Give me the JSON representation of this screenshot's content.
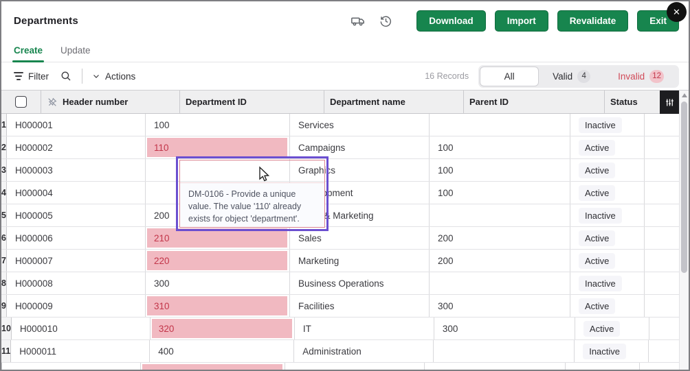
{
  "window": {
    "title": "Departments",
    "close_label": "✕"
  },
  "header": {
    "icons": {
      "truck": "truck-icon",
      "history": "history-icon"
    },
    "buttons": {
      "download": "Download",
      "import": "Import",
      "revalidate": "Revalidate",
      "exit": "Exit"
    }
  },
  "tabs": {
    "create": "Create",
    "update": "Update",
    "active": "Create"
  },
  "toolbar": {
    "filter_label": "Filter",
    "actions_label": "Actions",
    "records_text": "16 Records",
    "segments": {
      "all": "All",
      "valid": "Valid",
      "valid_count": "4",
      "invalid": "Invalid",
      "invalid_count": "12"
    }
  },
  "table": {
    "columns": {
      "header_number": "Header number",
      "department_id": "Department ID",
      "department_name": "Department name",
      "parent_id": "Parent ID",
      "status": "Status"
    },
    "rows": [
      {
        "num": "1",
        "header_number": "H000001",
        "department_id": "100",
        "invalid": false,
        "covered": false,
        "department_name": "Services",
        "parent_id": "",
        "status": "Inactive"
      },
      {
        "num": "2",
        "header_number": "H000002",
        "department_id": "110",
        "invalid": true,
        "covered": false,
        "department_name": "Campaigns",
        "parent_id": "100",
        "status": "Active"
      },
      {
        "num": "3",
        "header_number": "H000003",
        "department_id": "",
        "invalid": false,
        "covered": true,
        "department_name": "Graphics",
        "parent_id": "100",
        "status": "Active"
      },
      {
        "num": "4",
        "header_number": "H000004",
        "department_id": "",
        "invalid": false,
        "covered": true,
        "department_name": "Development",
        "parent_id": "100",
        "status": "Active"
      },
      {
        "num": "5",
        "header_number": "H000005",
        "department_id": "200",
        "invalid": false,
        "covered": false,
        "department_name": "Sales & Marketing",
        "parent_id": "",
        "status": "Inactive"
      },
      {
        "num": "6",
        "header_number": "H000006",
        "department_id": "210",
        "invalid": true,
        "covered": false,
        "department_name": "Sales",
        "parent_id": "200",
        "status": "Active"
      },
      {
        "num": "7",
        "header_number": "H000007",
        "department_id": "220",
        "invalid": true,
        "covered": false,
        "department_name": "Marketing",
        "parent_id": "200",
        "status": "Active"
      },
      {
        "num": "8",
        "header_number": "H000008",
        "department_id": "300",
        "invalid": false,
        "covered": false,
        "department_name": "Business Operations",
        "parent_id": "",
        "status": "Inactive"
      },
      {
        "num": "9",
        "header_number": "H000009",
        "department_id": "310",
        "invalid": true,
        "covered": false,
        "department_name": "Facilities",
        "parent_id": "300",
        "status": "Active"
      },
      {
        "num": "10",
        "header_number": "H000010",
        "department_id": "320",
        "invalid": true,
        "covered": false,
        "department_name": "IT",
        "parent_id": "300",
        "status": "Active"
      },
      {
        "num": "11",
        "header_number": "H000011",
        "department_id": "400",
        "invalid": false,
        "covered": false,
        "department_name": "Administration",
        "parent_id": "",
        "status": "Inactive"
      }
    ],
    "partial_row_invalid": true
  },
  "tooltip": {
    "text": "DM-0106 - Provide a unique value. The value '110' already exists for object 'department'."
  },
  "colors": {
    "accent_green": "#17854e",
    "invalid_text": "#c23549",
    "invalid_bg": "#f1b9c1",
    "annotation_purple": "#6b4fd0",
    "header_bg": "#efeff0"
  }
}
